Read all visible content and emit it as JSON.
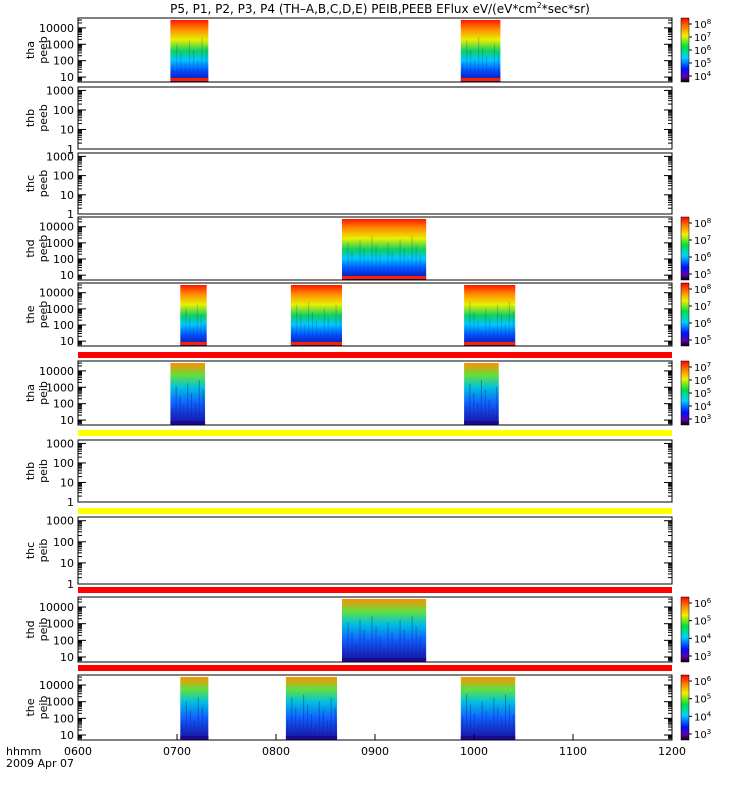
{
  "chart_data": {
    "type": "heatmap",
    "title": "P5, P1, P2, P3, P4 (TH-A,B,C,D,E) PEIB,PEEB EFlux eV/(eV*cm^2*sec*sr)",
    "title_parts": [
      "P5, P1, P2, P3, P4 (TH–A,B,C,D,E) PEIB,PEEB EFlux eV/(eV*cm",
      "2",
      "*sec*sr)"
    ],
    "x_time_ticks": [
      "0600",
      "0700",
      "0800",
      "0900",
      "1000",
      "1100",
      "1200"
    ],
    "xlim": [
      "06:00",
      "12:00"
    ],
    "x_label_line1": "hhmm",
    "x_label_line2": "2009 Apr 07",
    "y_scale": "log",
    "panels": [
      {
        "probe": "tha",
        "product": "peeb",
        "y_ticks": [
          "10",
          "100",
          "1000",
          "10000"
        ],
        "ylim": [
          5,
          40000
        ],
        "intervals": [
          [
            "06:56",
            "07:19"
          ],
          [
            "09:52",
            "10:16"
          ]
        ],
        "colorbar": {
          "ticks": [
            "10^4",
            "10^5",
            "10^6",
            "10^7",
            "10^8"
          ]
        }
      },
      {
        "probe": "thb",
        "product": "peeb",
        "y_ticks": [
          "1",
          "10",
          "100",
          "1000"
        ],
        "ylim": [
          1,
          1500
        ],
        "intervals": []
      },
      {
        "probe": "thc",
        "product": "peeb",
        "y_ticks": [
          "1",
          "10",
          "100",
          "1000"
        ],
        "ylim": [
          1,
          1500
        ],
        "intervals": []
      },
      {
        "probe": "thd",
        "product": "peeb",
        "y_ticks": [
          "10",
          "100",
          "1000",
          "10000"
        ],
        "ylim": [
          5,
          40000
        ],
        "intervals": [
          [
            "08:40",
            "09:31"
          ]
        ],
        "colorbar": {
          "ticks": [
            "10^5",
            "10^6",
            "10^7",
            "10^8"
          ]
        }
      },
      {
        "probe": "the",
        "product": "peeb",
        "y_ticks": [
          "10",
          "100",
          "1000",
          "10000"
        ],
        "ylim": [
          5,
          40000
        ],
        "intervals": [
          [
            "07:02",
            "07:18"
          ],
          [
            "08:09",
            "08:40"
          ],
          [
            "09:54",
            "10:25"
          ]
        ],
        "colorbar": {
          "ticks": [
            "10^5",
            "10^6",
            "10^7",
            "10^8"
          ]
        }
      },
      {
        "probe": "tha",
        "product": "peib",
        "y_ticks": [
          "10",
          "100",
          "1000",
          "10000"
        ],
        "ylim": [
          5,
          40000
        ],
        "intervals": [
          [
            "06:56",
            "07:17"
          ],
          [
            "09:54",
            "10:15"
          ]
        ],
        "colorbar": {
          "ticks": [
            "10^3",
            "10^4",
            "10^5",
            "10^6",
            "10^7"
          ]
        }
      },
      {
        "probe": "thb",
        "product": "peib",
        "y_ticks": [
          "1",
          "10",
          "100",
          "1000"
        ],
        "ylim": [
          1,
          1500
        ],
        "intervals": []
      },
      {
        "probe": "thc",
        "product": "peib",
        "y_ticks": [
          "1",
          "10",
          "100",
          "1000"
        ],
        "ylim": [
          1,
          1500
        ],
        "intervals": []
      },
      {
        "probe": "thd",
        "product": "peib",
        "y_ticks": [
          "10",
          "100",
          "1000",
          "10000"
        ],
        "ylim": [
          5,
          40000
        ],
        "intervals": [
          [
            "08:40",
            "09:31"
          ]
        ],
        "colorbar": {
          "ticks": [
            "10^3",
            "10^4",
            "10^5",
            "10^6"
          ]
        }
      },
      {
        "probe": "the",
        "product": "peib",
        "y_ticks": [
          "10",
          "100",
          "1000",
          "10000"
        ],
        "ylim": [
          5,
          40000
        ],
        "intervals": [
          [
            "07:02",
            "07:19"
          ],
          [
            "08:06",
            "08:37"
          ],
          [
            "09:52",
            "10:25"
          ]
        ],
        "colorbar": {
          "ticks": [
            "10^3",
            "10^4",
            "10^5",
            "10^6"
          ]
        }
      }
    ],
    "separator_bars": [
      "#ff0000",
      "#ffff00",
      "#ffff00",
      "#ff0000",
      "#ff0000"
    ]
  }
}
